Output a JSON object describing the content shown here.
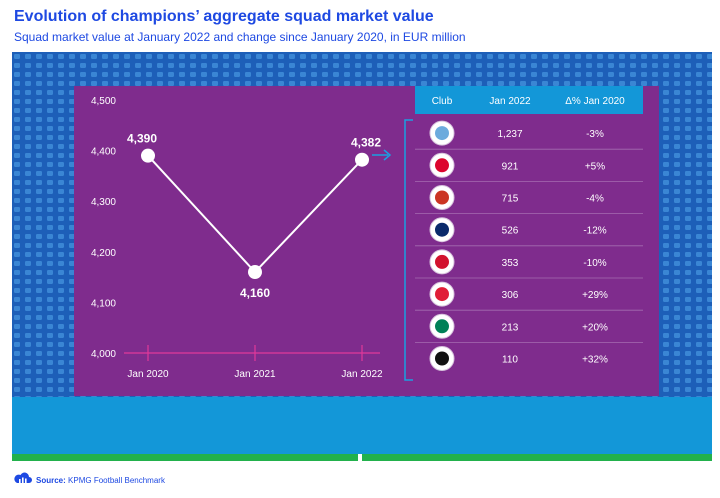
{
  "header": {
    "title": "Evolution of champions’ aggregate squad market value",
    "subtitle": "Squad market value at January 2022 and change since January 2020, in EUR million"
  },
  "footer": {
    "source_label": "Source:",
    "source_text": "KPMG Football Benchmark"
  },
  "colors": {
    "title": "#1e49e2",
    "panel": "#7f2c8d",
    "stadium": "#1d5fb8",
    "table_header": "#1397d8",
    "accent_green": "#22b14c",
    "tick_pink": "#e0389a"
  },
  "chart_data": {
    "type": "line",
    "x": [
      "Jan 2020",
      "Jan 2021",
      "Jan 2022"
    ],
    "values": [
      4390,
      4160,
      4382
    ],
    "data_labels": [
      "4,390",
      "4,160",
      "4,382"
    ],
    "ylim": [
      4000,
      4500
    ],
    "yticks": [
      "4,000",
      "4,100",
      "4,200",
      "4,300",
      "4,400",
      "4,500"
    ],
    "grid": false
  },
  "table": {
    "columns": [
      "Club",
      "Jan 2022",
      "Δ% Jan 2020"
    ],
    "rows": [
      {
        "club_icon": "manchester-city-crest-icon",
        "value": "1,237",
        "change": "-3%"
      },
      {
        "club_icon": "bayern-munich-crest-icon",
        "value": "921",
        "change": "+5%"
      },
      {
        "club_icon": "atletico-madrid-crest-icon",
        "value": "715",
        "change": "-4%"
      },
      {
        "club_icon": "inter-milan-crest-icon",
        "value": "526",
        "change": "-12%"
      },
      {
        "club_icon": "ajax-crest-icon",
        "value": "353",
        "change": "-10%"
      },
      {
        "club_icon": "lille-crest-icon",
        "value": "306",
        "change": "+29%"
      },
      {
        "club_icon": "sporting-cp-crest-icon",
        "value": "213",
        "change": "+20%"
      },
      {
        "club_icon": "besiktas-crest-icon",
        "value": "110",
        "change": "+32%"
      }
    ]
  }
}
